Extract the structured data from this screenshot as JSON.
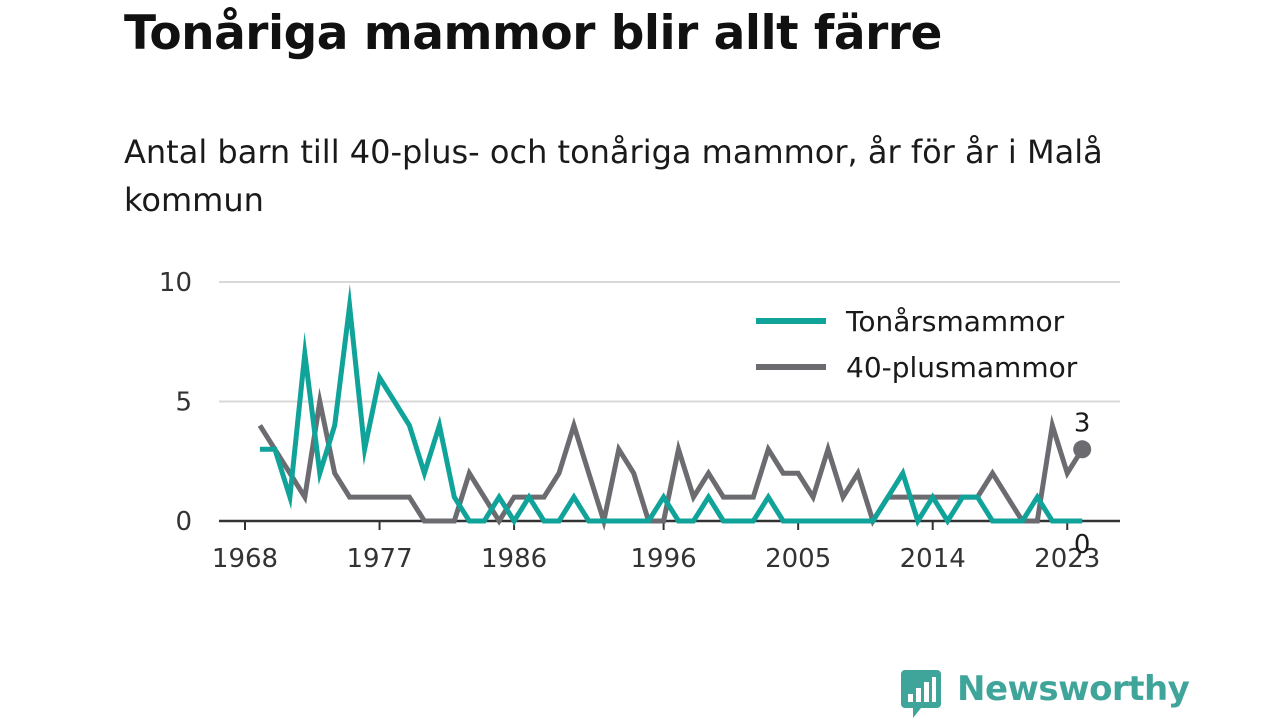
{
  "header": {
    "title": "Tonåriga mammor blir allt färre",
    "subtitle": "Antal barn till 40-plus- och tonåriga mammor, år för år i Malå kommun"
  },
  "logo": {
    "text": "Newsworthy",
    "icon": "bar-chart-speech-bubble-icon",
    "color": "#3fa59a"
  },
  "chart_data": {
    "type": "line",
    "title": "Tonåriga mammor blir allt färre",
    "subtitle": "Antal barn till 40-plus- och tonåriga mammor, år för år i Malå kommun",
    "xlabel": "",
    "ylabel": "",
    "x": [
      1969,
      1970,
      1971,
      1972,
      1973,
      1974,
      1975,
      1976,
      1977,
      1978,
      1979,
      1980,
      1981,
      1982,
      1983,
      1984,
      1985,
      1986,
      1987,
      1988,
      1989,
      1990,
      1991,
      1992,
      1993,
      1994,
      1995,
      1996,
      1997,
      1998,
      1999,
      2000,
      2001,
      2002,
      2003,
      2004,
      2005,
      2006,
      2007,
      2008,
      2009,
      2010,
      2011,
      2012,
      2013,
      2014,
      2015,
      2016,
      2017,
      2018,
      2019,
      2020,
      2021,
      2022,
      2023,
      2024
    ],
    "series": [
      {
        "name": "Tonårsmammor",
        "color": "#10a39a",
        "values": [
          3,
          3,
          1,
          7,
          2,
          4,
          9,
          3,
          6,
          5,
          4,
          2,
          4,
          1,
          0,
          0,
          1,
          0,
          1,
          0,
          0,
          1,
          0,
          0,
          0,
          0,
          0,
          1,
          0,
          0,
          1,
          0,
          0,
          0,
          1,
          0,
          0,
          0,
          0,
          0,
          0,
          0,
          1,
          2,
          0,
          1,
          0,
          1,
          1,
          0,
          0,
          0,
          1,
          0,
          0,
          0
        ]
      },
      {
        "name": "40-plusmammor",
        "color": "#6c6b70",
        "values": [
          4,
          3,
          2,
          1,
          5,
          2,
          1,
          1,
          1,
          1,
          1,
          0,
          0,
          0,
          2,
          1,
          0,
          1,
          1,
          1,
          2,
          4,
          2,
          0,
          3,
          2,
          0,
          0,
          3,
          1,
          2,
          1,
          1,
          1,
          3,
          2,
          2,
          1,
          3,
          1,
          2,
          0,
          1,
          1,
          1,
          1,
          1,
          1,
          1,
          2,
          1,
          0,
          0,
          4,
          2,
          3
        ]
      }
    ],
    "xticks": [
      1968,
      1977,
      1986,
      1996,
      2005,
      2014,
      2023
    ],
    "yticks": [
      0,
      5,
      10
    ],
    "xlim": [
      1968,
      2024
    ],
    "ylim": [
      0,
      10
    ],
    "grid": "horizontal",
    "legend": "top-right",
    "end_labels": [
      {
        "series": "40-plusmammor",
        "x": 2024,
        "y": 3,
        "text": "3"
      },
      {
        "series": "Tonårsmammor",
        "x": 2024,
        "y": 0,
        "text": "0"
      }
    ]
  }
}
